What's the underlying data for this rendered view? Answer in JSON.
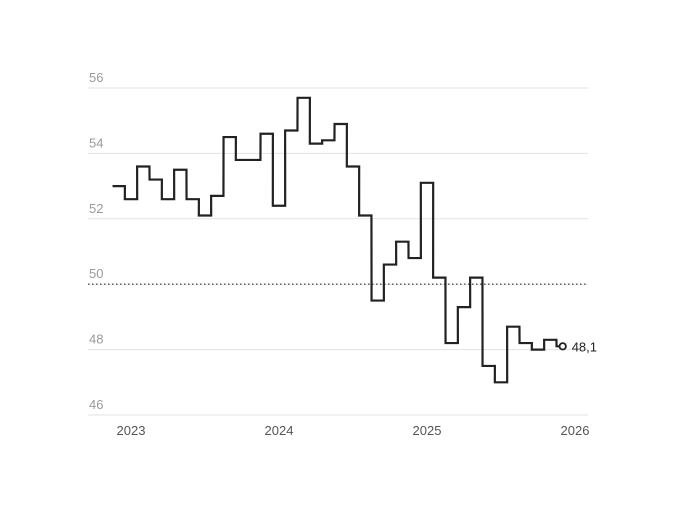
{
  "chart_data": {
    "type": "line",
    "step": true,
    "yticks": [
      "46",
      "48",
      "50",
      "52",
      "54",
      "56"
    ],
    "ylim": [
      46,
      56
    ],
    "reference_line": 50,
    "xticks": [
      "2023",
      "2024",
      "2025",
      "2026"
    ],
    "xlim": [
      2023,
      2026
    ],
    "grid": true,
    "colors": {
      "line": "#222222",
      "grid": "#e3e3e3",
      "reference": "#555555"
    },
    "series": [
      {
        "x": [
          2022.917,
          2023.0,
          2023.083,
          2023.167,
          2023.25,
          2023.333,
          2023.417,
          2023.5,
          2023.583,
          2023.667,
          2023.75,
          2023.833,
          2023.917,
          2024.0,
          2024.083,
          2024.167,
          2024.25,
          2024.333,
          2024.417,
          2024.5,
          2024.583,
          2024.667,
          2024.75,
          2024.833,
          2024.917,
          2025.0,
          2025.083,
          2025.167,
          2025.25,
          2025.333,
          2025.417,
          2025.5,
          2025.583,
          2025.667,
          2025.75,
          2025.833,
          2025.917
        ],
        "values": [
          53.0,
          52.6,
          53.6,
          53.2,
          52.6,
          53.5,
          52.6,
          52.1,
          52.7,
          54.5,
          53.8,
          53.8,
          54.6,
          52.4,
          54.7,
          55.7,
          54.3,
          54.4,
          54.9,
          53.6,
          52.1,
          49.5,
          50.6,
          51.3,
          50.8,
          53.1,
          50.2,
          48.2,
          49.3,
          50.2,
          47.5,
          47.0,
          48.7,
          48.2,
          48.0,
          48.3,
          48.1
        ]
      }
    ],
    "end_label": "48,1"
  }
}
